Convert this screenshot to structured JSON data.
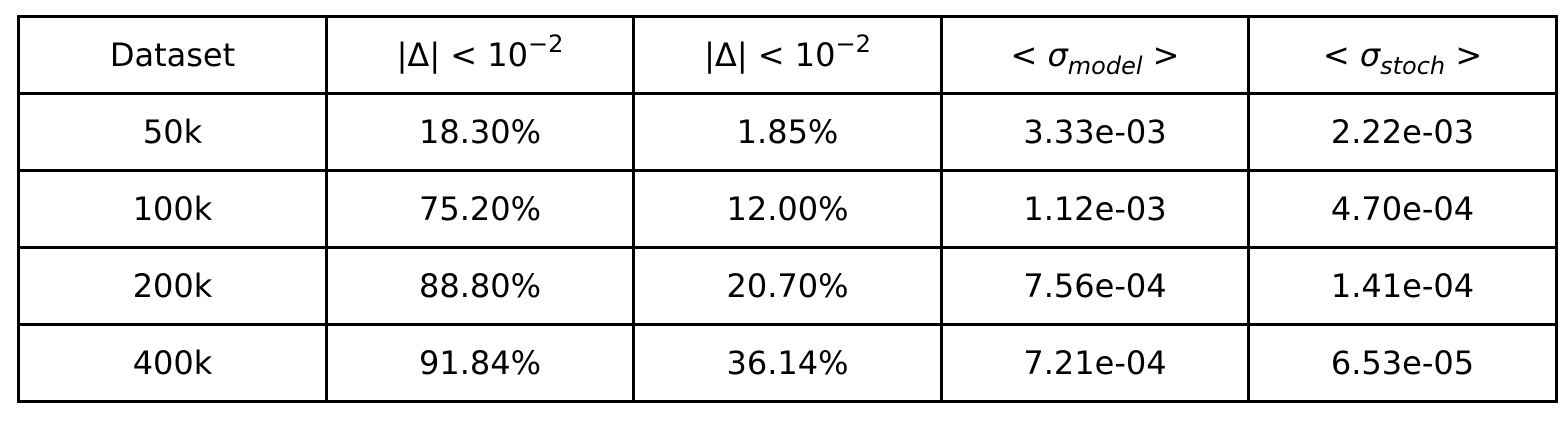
{
  "table": {
    "headers": [
      {
        "kind": "plain",
        "text": "Dataset"
      },
      {
        "kind": "abs_delta",
        "prefix": "|Δ| < 10",
        "exponent": "−2"
      },
      {
        "kind": "abs_delta",
        "prefix": "|Δ| < 10",
        "exponent": "−2"
      },
      {
        "kind": "sigma",
        "open": "<",
        "symbol": "σ",
        "subscript": "model",
        "close": ">"
      },
      {
        "kind": "sigma",
        "open": "<",
        "symbol": "σ",
        "subscript": "stoch",
        "close": ">"
      }
    ],
    "rows": [
      [
        "50k",
        "18.30%",
        "1.85%",
        "3.33e-03",
        "2.22e-03"
      ],
      [
        "100k",
        "75.20%",
        "12.00%",
        "1.12e-03",
        "4.70e-04"
      ],
      [
        "200k",
        "88.80%",
        "20.70%",
        "7.56e-04",
        "1.41e-04"
      ],
      [
        "400k",
        "91.84%",
        "36.14%",
        "7.21e-04",
        "6.53e-05"
      ]
    ]
  }
}
